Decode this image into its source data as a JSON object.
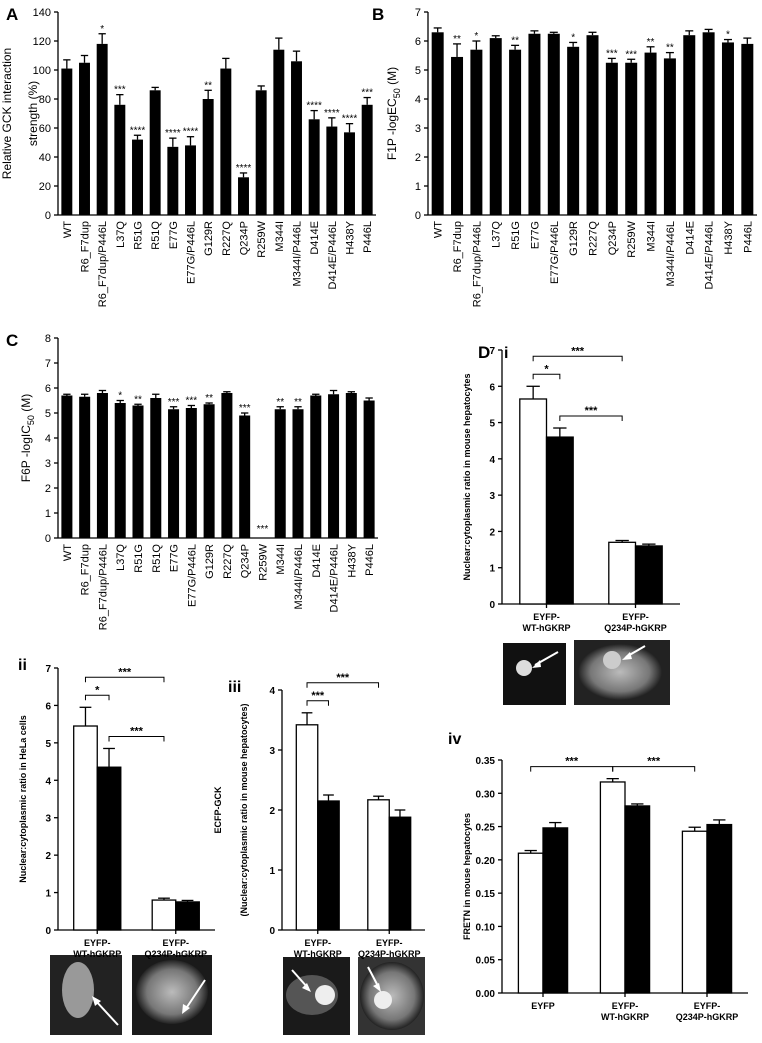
{
  "chart_data": [
    {
      "type": "bar",
      "panel": "A",
      "ylabel_lines": [
        "Relative GCK  interaction",
        "strength (%)"
      ],
      "color": "#000000",
      "categories": [
        "WT",
        "R6_F7dup",
        "R6_F7dup/P446L",
        "L37Q",
        "R51G",
        "R51Q",
        "E77G",
        "E77G/P446L",
        "G129R",
        "R227Q",
        "Q234P",
        "R259W",
        "M344I",
        "M344I/P446L",
        "D414E",
        "D414E/P446L",
        "H438Y",
        "P446L"
      ],
      "values": [
        101,
        105,
        118,
        76,
        52,
        86,
        47,
        48,
        80,
        101,
        26,
        86,
        114,
        106,
        66,
        61,
        57,
        76
      ],
      "errors": [
        6,
        5,
        7,
        7,
        3,
        2,
        6,
        6,
        6,
        7,
        3,
        3,
        8,
        7,
        6,
        6,
        6,
        5
      ],
      "annotations": [
        null,
        null,
        "*",
        "***",
        "****",
        null,
        "****",
        "****",
        "**",
        null,
        "****",
        null,
        null,
        null,
        "****",
        "****",
        "****",
        "***"
      ],
      "ylim": [
        0,
        140
      ],
      "yticks": [
        0,
        20,
        40,
        60,
        80,
        100,
        120,
        140
      ]
    },
    {
      "type": "bar",
      "panel": "B",
      "ylabel": "F1P -logEC",
      "ylabel_subscript": "50",
      "ylabel_suffix": " (M)",
      "color": "#000000",
      "categories": [
        "WT",
        "R6_F7dup",
        "R6_F7dup/P446L",
        "L37Q",
        "R51G",
        "E77G",
        "E77G/P446L",
        "G129R",
        "R227Q",
        "Q234P",
        "R259W",
        "M344I",
        "M344I/P446L",
        "D414E",
        "D414E/P446L",
        "H438Y",
        "P446L"
      ],
      "values": [
        6.3,
        5.45,
        5.7,
        6.1,
        5.7,
        6.25,
        6.25,
        5.8,
        6.2,
        5.25,
        5.25,
        5.6,
        5.4,
        6.2,
        6.3,
        5.95,
        5.9
      ],
      "errors": [
        0.15,
        0.45,
        0.3,
        0.08,
        0.15,
        0.1,
        0.05,
        0.15,
        0.1,
        0.15,
        0.12,
        0.2,
        0.2,
        0.15,
        0.1,
        0.1,
        0.2
      ],
      "annotations": [
        null,
        "**",
        "*",
        null,
        "**",
        null,
        null,
        "*",
        null,
        "***",
        "***",
        "**",
        "**",
        null,
        null,
        "*",
        null
      ],
      "ylim": [
        0,
        7
      ],
      "yticks": [
        0,
        1,
        2,
        3,
        4,
        5,
        6,
        7
      ]
    },
    {
      "type": "bar",
      "panel": "C",
      "ylabel": "F6P -logIC",
      "ylabel_subscript": "50",
      "ylabel_suffix": " (M)",
      "color": "#000000",
      "categories": [
        "WT",
        "R6_F7dup",
        "R6_F7dup/P446L",
        "L37Q",
        "R51G",
        "R51Q",
        "E77G",
        "E77G/P446L",
        "G129R",
        "R227Q",
        "Q234P",
        "R259W",
        "M344I",
        "M344I/P446L",
        "D414E",
        "D414E/P446L",
        "H438Y",
        "P446L"
      ],
      "values": [
        5.7,
        5.65,
        5.8,
        5.4,
        5.3,
        5.6,
        5.15,
        5.2,
        5.35,
        5.8,
        4.9,
        null,
        5.15,
        5.15,
        5.7,
        5.75,
        5.8,
        5.5
      ],
      "errors": [
        0.05,
        0.1,
        0.1,
        0.1,
        0.05,
        0.15,
        0.1,
        0.1,
        0.05,
        0.05,
        0.1,
        null,
        0.1,
        0.1,
        0.05,
        0.15,
        0.05,
        0.1
      ],
      "annotations": [
        null,
        null,
        null,
        "*",
        "**",
        null,
        "***",
        "***",
        "**",
        null,
        "***",
        "***",
        "**",
        "**",
        null,
        null,
        null,
        null
      ],
      "ylim": [
        0,
        8
      ],
      "yticks": [
        0,
        1,
        2,
        3,
        4,
        5,
        6,
        7,
        8
      ]
    },
    {
      "type": "grouped_bar",
      "panel": "D",
      "subpanel": "i",
      "ylabel_lines": [
        "Nuclear:cytoplasmic ratio in mouse hepatocytes"
      ],
      "categories": [
        [
          "EYFP-",
          "WT-hGKRP"
        ],
        [
          "EYFP-",
          "Q234P-hGKRP"
        ]
      ],
      "series": [
        {
          "color": "#ffffff",
          "values": [
            5.65,
            1.7
          ],
          "errors": [
            0.35,
            0.05
          ]
        },
        {
          "color": "#000000",
          "values": [
            4.6,
            1.6
          ],
          "errors": [
            0.25,
            0.05
          ]
        }
      ],
      "comparisons": [
        {
          "label": "*",
          "from": [
            0,
            0
          ],
          "to": [
            1,
            0
          ]
        },
        {
          "label": "***",
          "from": [
            0,
            0
          ],
          "to": [
            0,
            1
          ]
        },
        {
          "label": "***",
          "from": [
            1,
            0
          ],
          "to": [
            0,
            1
          ]
        }
      ],
      "ylim": [
        0,
        7
      ],
      "yticks": [
        0,
        1,
        2,
        3,
        4,
        5,
        6,
        7
      ]
    },
    {
      "type": "grouped_bar",
      "subpanel": "ii",
      "ylabel_lines": [
        "Nuclear:cytoplasmic ratio in HeLa cells"
      ],
      "categories": [
        [
          "EYFP-",
          "WT-hGKRP"
        ],
        [
          "EYFP-",
          "Q234P-hGKRP"
        ]
      ],
      "series": [
        {
          "color": "#ffffff",
          "values": [
            5.45,
            0.8
          ],
          "errors": [
            0.5,
            0.05
          ]
        },
        {
          "color": "#000000",
          "values": [
            4.35,
            0.75
          ],
          "errors": [
            0.5,
            0.04
          ]
        }
      ],
      "comparisons": [
        {
          "label": "*",
          "from": [
            0,
            0
          ],
          "to": [
            1,
            0
          ]
        },
        {
          "label": "***",
          "from": [
            0,
            0
          ],
          "to": [
            0,
            1
          ]
        },
        {
          "label": "***",
          "from": [
            1,
            0
          ],
          "to": [
            0,
            1
          ]
        }
      ],
      "ylim": [
        0,
        7
      ],
      "yticks": [
        0,
        1,
        2,
        3,
        4,
        5,
        6,
        7
      ]
    },
    {
      "type": "grouped_bar",
      "subpanel": "iii",
      "ylabel_lines": [
        "ECFP-GCK",
        "(Nuclear:cytoplasmic ratio in mouse hepatocytes)"
      ],
      "categories": [
        [
          "EYFP-",
          "WT-hGKRP"
        ],
        [
          "EYFP-",
          "Q234P-hGKRP"
        ]
      ],
      "series": [
        {
          "color": "#ffffff",
          "values": [
            3.42,
            2.17
          ],
          "errors": [
            0.2,
            0.06
          ]
        },
        {
          "color": "#000000",
          "values": [
            2.15,
            1.88
          ],
          "errors": [
            0.1,
            0.12
          ]
        }
      ],
      "comparisons": [
        {
          "label": "***",
          "from": [
            0,
            0
          ],
          "to": [
            1,
            0
          ]
        },
        {
          "label": "***",
          "from": [
            0,
            0
          ],
          "to": [
            0,
            1
          ]
        }
      ],
      "ylim": [
        0,
        4
      ],
      "yticks": [
        0,
        1,
        2,
        3,
        4
      ]
    },
    {
      "type": "grouped_bar",
      "subpanel": "iv",
      "ylabel_lines": [
        "FRETN in mouse hepatocytes"
      ],
      "categories": [
        [
          "EYFP"
        ],
        [
          "EYFP-",
          "WT-hGKRP"
        ],
        [
          "EYFP-",
          "Q234P-hGKRP"
        ]
      ],
      "series": [
        {
          "color": "#ffffff",
          "values": [
            0.21,
            0.317,
            0.243
          ],
          "errors": [
            0.004,
            0.005,
            0.006
          ]
        },
        {
          "color": "#000000",
          "values": [
            0.248,
            0.281,
            0.253
          ],
          "errors": [
            0.008,
            0.003,
            0.007
          ]
        }
      ],
      "comparisons": [
        {
          "label": "***",
          "from": [
            0,
            0
          ],
          "to": [
            0,
            1
          ]
        },
        {
          "label": "***",
          "from": [
            0,
            1
          ],
          "to": [
            0,
            2
          ]
        }
      ],
      "ylim": [
        0,
        0.35
      ],
      "yticks": [
        {
          "value": 0,
          "label": "0.00"
        },
        {
          "value": 0.05,
          "label": "0.05"
        },
        {
          "value": 0.1,
          "label": "0.10"
        },
        {
          "value": 0.15,
          "label": "0.15"
        },
        {
          "value": 0.2,
          "label": "0.20"
        },
        {
          "value": 0.25,
          "label": "0.25"
        },
        {
          "value": 0.3,
          "label": "0.30"
        },
        {
          "value": 0.35,
          "label": "0.35"
        }
      ]
    }
  ]
}
